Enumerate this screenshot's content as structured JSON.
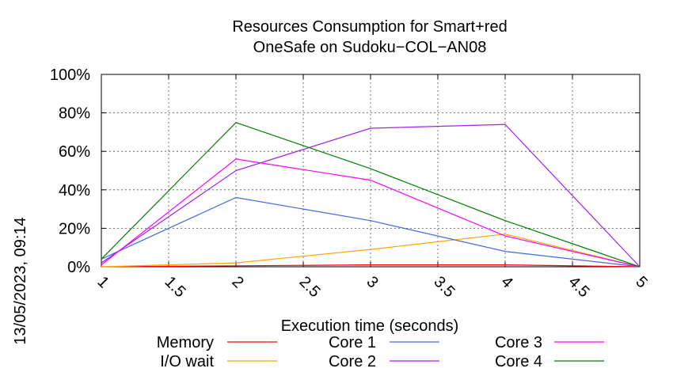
{
  "chart_data": {
    "type": "line",
    "title_line1": "Resources Consumption for Smart+red",
    "title_line2": "OneSafe on Sudoku−COL−AN08",
    "xlabel": "Execution time (seconds)",
    "ylabel": "",
    "side_label": "13/05/2023, 09:14",
    "xlim": [
      1,
      5
    ],
    "ylim": [
      0,
      100
    ],
    "x_ticks": [
      "1",
      "1.5",
      "2",
      "2.5",
      "3",
      "3.5",
      "4",
      "4.5",
      "5"
    ],
    "x_tick_values": [
      1,
      1.5,
      2,
      2.5,
      3,
      3.5,
      4,
      4.5,
      5
    ],
    "y_ticks": [
      "0%",
      "20%",
      "40%",
      "60%",
      "80%",
      "100%"
    ],
    "y_tick_values": [
      0,
      20,
      40,
      60,
      80,
      100
    ],
    "grid": true,
    "legend_position": "bottom",
    "series": [
      {
        "name": "Memory",
        "color": "#ff0000",
        "x": [
          1,
          2,
          3,
          4,
          5
        ],
        "values": [
          0,
          0.5,
          1,
          1,
          0
        ]
      },
      {
        "name": "I/O wait",
        "color": "#ffa500",
        "x": [
          1,
          2,
          3,
          4,
          5
        ],
        "values": [
          0,
          2,
          9,
          17,
          0
        ]
      },
      {
        "name": "Core 1",
        "color": "#4169e1",
        "x": [
          1,
          2,
          3,
          4,
          5
        ],
        "values": [
          4,
          36,
          24,
          8,
          0
        ]
      },
      {
        "name": "Core 2",
        "color": "#a020f0",
        "x": [
          1,
          2,
          3,
          4,
          5
        ],
        "values": [
          2,
          50,
          72,
          74,
          0
        ]
      },
      {
        "name": "Core 3",
        "color": "#ff00ff",
        "x": [
          1,
          2,
          3,
          4,
          5
        ],
        "values": [
          1,
          56,
          45,
          16,
          0
        ]
      },
      {
        "name": "Core 4",
        "color": "#008000",
        "x": [
          1,
          2,
          3,
          4,
          5
        ],
        "values": [
          4,
          75,
          51,
          24,
          0
        ]
      }
    ]
  }
}
